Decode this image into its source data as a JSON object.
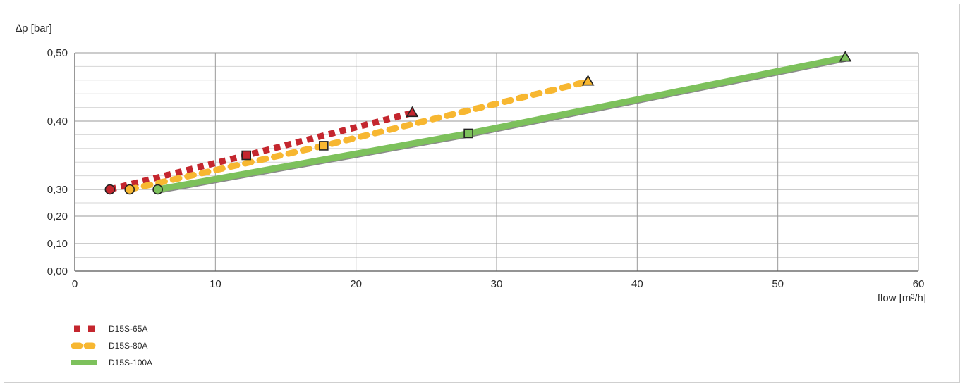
{
  "chart_data": {
    "type": "line",
    "ylabel": "∆p [bar]",
    "xlabel": "flow [m³/h]",
    "xlim": [
      0,
      60
    ],
    "x_ticks": [
      0,
      10,
      20,
      30,
      40,
      50,
      60
    ],
    "x_tick_labels": [
      "0",
      "10",
      "20",
      "30",
      "40",
      "50",
      "60"
    ],
    "y_ticks": [
      0.0,
      0.1,
      0.2,
      0.3,
      0.4,
      0.5
    ],
    "y_tick_labels": [
      "0,00",
      "0,10",
      "0,20",
      "0,30",
      "0,40",
      "0,50"
    ],
    "y_scale": "nonlinear (0,00–0,30 compressed, 0,30–0,50 expanded)",
    "grid": true,
    "legend_position": "bottom-left",
    "series": [
      {
        "name": "D15S-65A",
        "color": "#c4262e",
        "line_style": "dotted-square",
        "points": [
          {
            "x": 2.5,
            "y": 0.3,
            "marker": "circle"
          },
          {
            "x": 12.2,
            "y": 0.35,
            "marker": "square"
          },
          {
            "x": 24.0,
            "y": 0.412,
            "marker": "triangle"
          }
        ]
      },
      {
        "name": "D15S-80A",
        "color": "#f7b731",
        "line_style": "dashed-round",
        "points": [
          {
            "x": 3.9,
            "y": 0.3,
            "marker": "circle"
          },
          {
            "x": 17.7,
            "y": 0.364,
            "marker": "square"
          },
          {
            "x": 36.5,
            "y": 0.458,
            "marker": "triangle"
          }
        ]
      },
      {
        "name": "D15S-100A",
        "color": "#7dc15c",
        "line_style": "solid",
        "points": [
          {
            "x": 5.9,
            "y": 0.3,
            "marker": "circle"
          },
          {
            "x": 28.0,
            "y": 0.382,
            "marker": "square"
          },
          {
            "x": 54.8,
            "y": 0.493,
            "marker": "triangle"
          }
        ]
      }
    ]
  }
}
